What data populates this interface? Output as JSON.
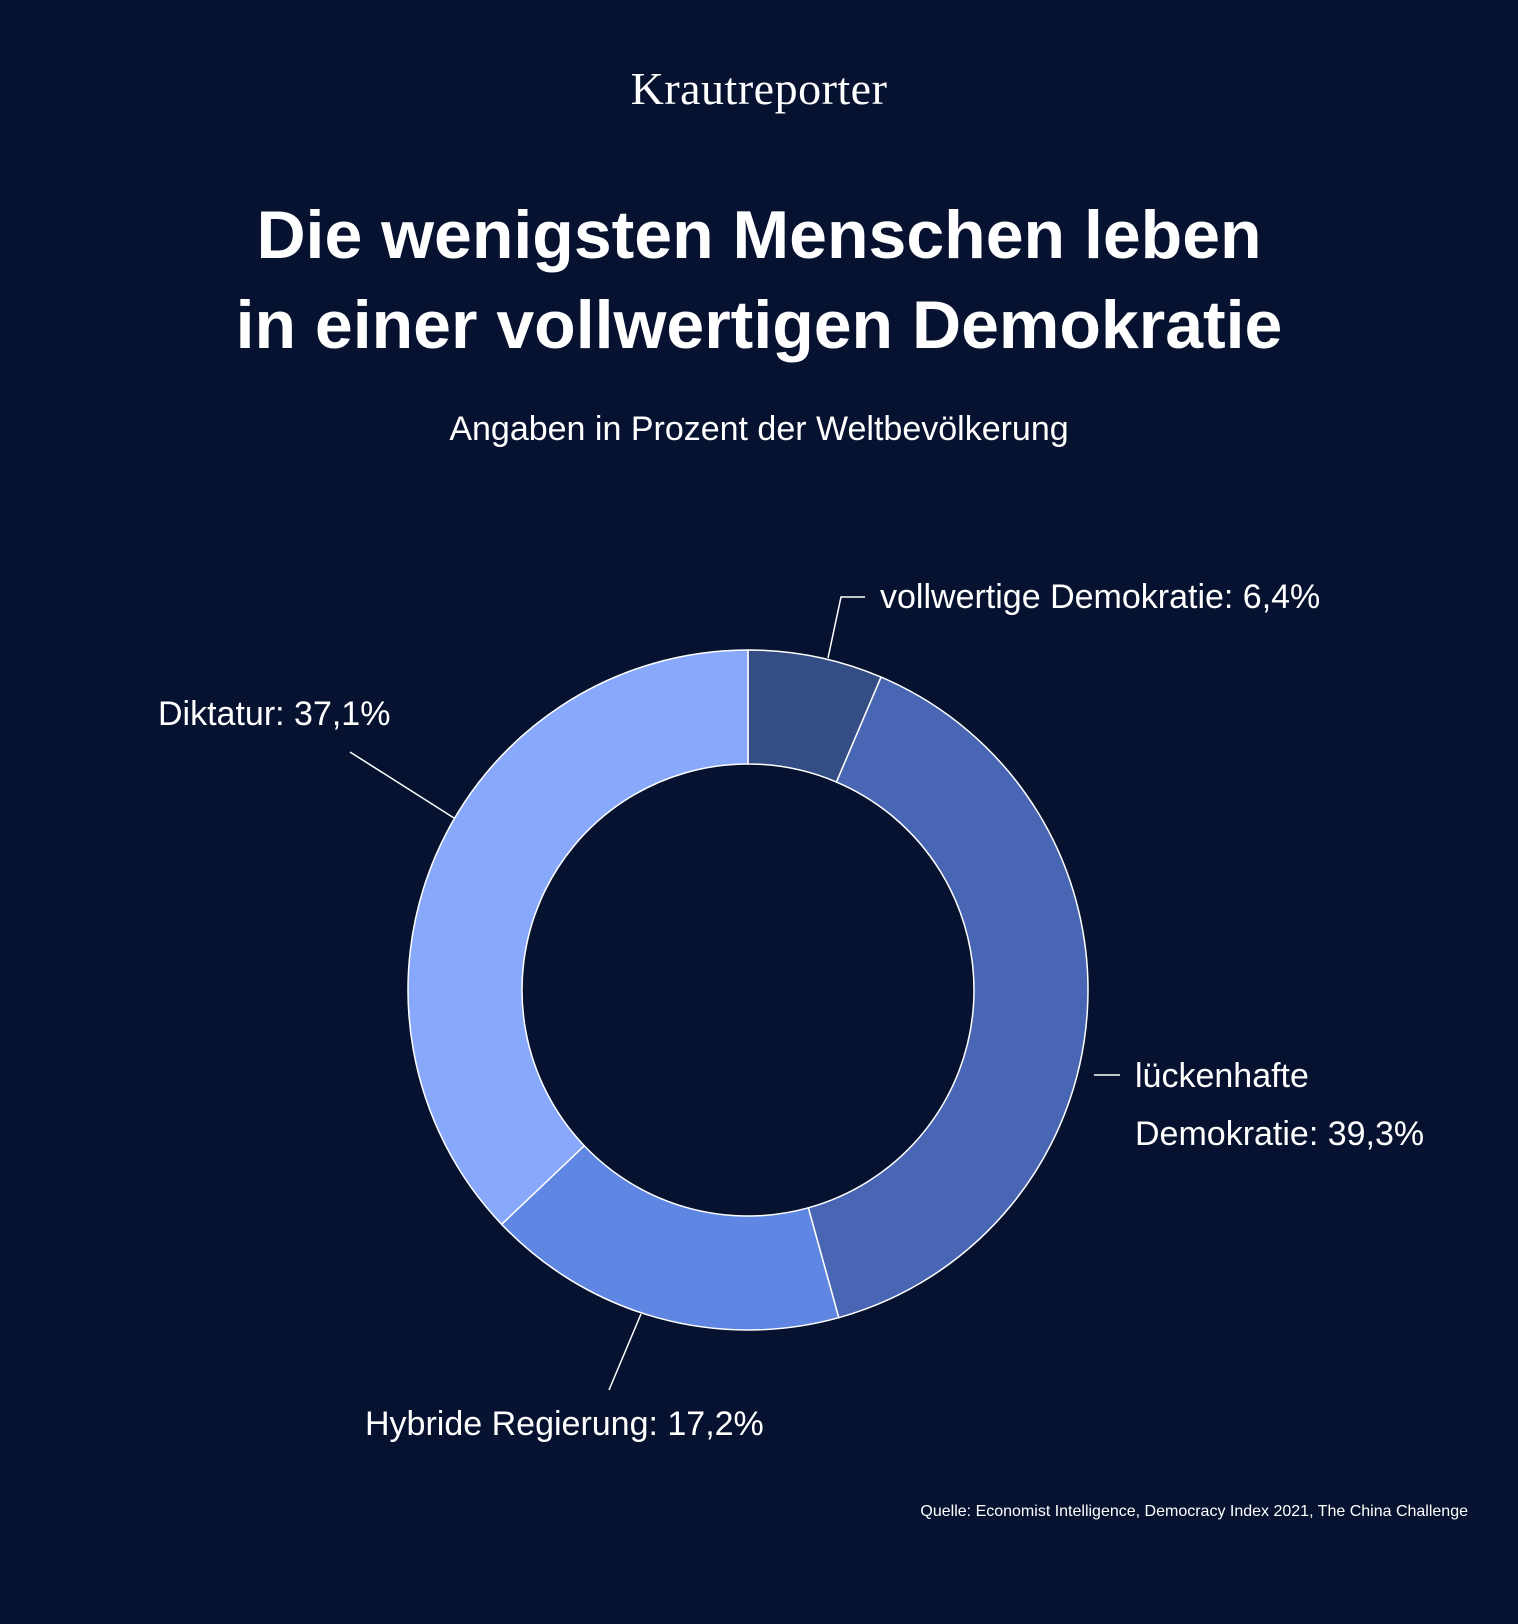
{
  "brand": "Krautreporter",
  "title_line1": "Die wenigsten Menschen leben",
  "title_line2": "in einer vollwertigen Demokratie",
  "subtitle": "Angaben in Prozent der Weltbevölkerung",
  "source": "Quelle: Economist Intelligence, Democracy Index 2021, The China Challenge",
  "chart_data": {
    "type": "pie",
    "title": "Die wenigsten Menschen leben in einer vollwertigen Demokratie",
    "subtitle": "Angaben in Prozent der Weltbevölkerung",
    "unit": "%",
    "slices": [
      {
        "label": "vollwertige Demokratie",
        "value": 6.4,
        "display": "6,4%",
        "color": "#354d85"
      },
      {
        "label": "lückenhafte Demokratie",
        "value": 39.3,
        "display": "39,3%",
        "color": "#4866b4"
      },
      {
        "label": "Hybride Regierung",
        "value": 17.2,
        "display": "17,2%",
        "color": "#5f86e3"
      },
      {
        "label": "Diktatur",
        "value": 37.1,
        "display": "37,1%",
        "color": "#88a8fb"
      }
    ],
    "labels": [
      {
        "lines": [
          "vollwertige Demokratie: 6,4%"
        ]
      },
      {
        "lines": [
          "lückenhafte",
          "Demokratie: 39,3%"
        ]
      },
      {
        "lines": [
          "Hybride Regierung: 17,2%"
        ]
      },
      {
        "lines": [
          "Diktatur: 37,1%"
        ]
      }
    ],
    "donut": true,
    "legend": "none",
    "grid": false
  }
}
